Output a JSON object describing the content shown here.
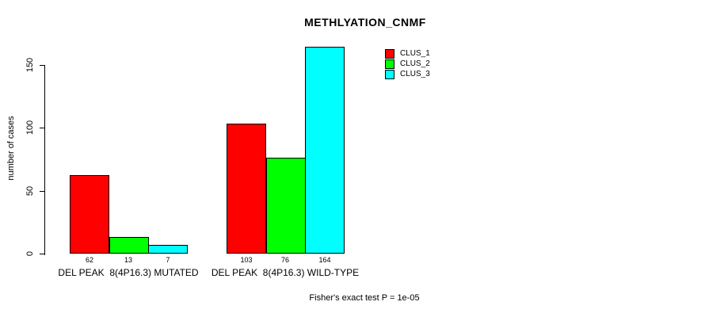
{
  "chart_data": {
    "type": "bar",
    "title": "METHLYATION_CNMF",
    "ylabel": "number of cases",
    "xlabel": "",
    "footer": "Fisher's exact test P = 1e-05",
    "categories": [
      "DEL PEAK  8(4P16.3) MUTATED",
      "DEL PEAK  8(4P16.3) WILD-TYPE"
    ],
    "series": [
      {
        "name": "CLUS_1",
        "color": "#FF0000",
        "values": [
          62,
          103
        ]
      },
      {
        "name": "CLUS_2",
        "color": "#00FF00",
        "values": [
          13,
          76
        ]
      },
      {
        "name": "CLUS_3",
        "color": "#00FFFF",
        "values": [
          7,
          164
        ]
      }
    ],
    "bar_value_labels": [
      [
        62,
        13,
        7
      ],
      [
        103,
        76,
        164
      ]
    ],
    "yticks": [
      0,
      50,
      100,
      150
    ],
    "ylim": [
      0,
      169
    ],
    "grid": false,
    "legend_position": "top-right",
    "axis_color": "#000000",
    "background_color": "#FFFFFF"
  }
}
